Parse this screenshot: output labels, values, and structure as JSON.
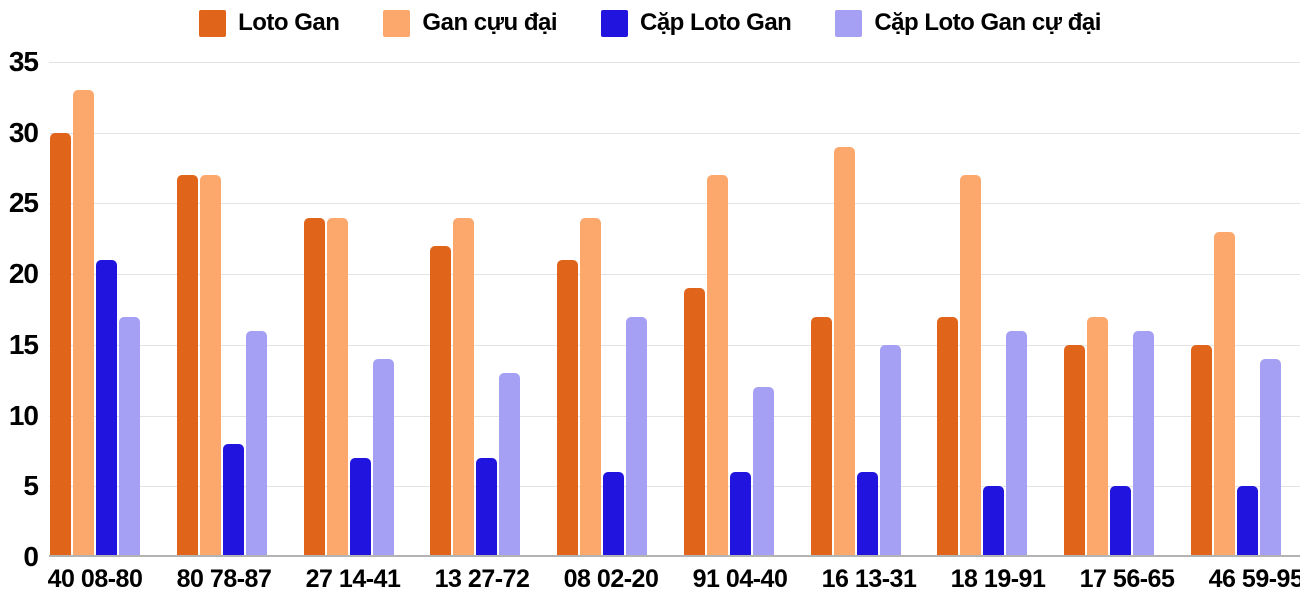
{
  "chart_data": {
    "type": "bar",
    "title": "",
    "xlabel": "",
    "ylabel": "",
    "categories": [
      "40 08-80",
      "80 78-87",
      "27 14-41",
      "13 27-72",
      "08 02-20",
      "91 04-40",
      "16 13-31",
      "18 19-91",
      "17 56-65",
      "46 59-95"
    ],
    "series": [
      {
        "name": "Loto Gan",
        "color": "#E0641A",
        "values": [
          30,
          27,
          24,
          22,
          21,
          19,
          17,
          17,
          15,
          15
        ]
      },
      {
        "name": "Gan cựu đại",
        "color": "#FCA76C",
        "values": [
          33,
          27,
          24,
          24,
          24,
          27,
          29,
          27,
          17,
          23
        ]
      },
      {
        "name": "Cặp Loto Gan",
        "color": "#2114DF",
        "values": [
          21,
          8,
          7,
          7,
          6,
          6,
          6,
          5,
          5,
          5
        ]
      },
      {
        "name": "Cặp Loto Gan cự đại",
        "color": "#A5A0F3",
        "values": [
          17,
          16,
          14,
          13,
          17,
          12,
          15,
          16,
          16,
          14
        ]
      }
    ],
    "ylim": [
      0,
      35
    ],
    "yticks": [
      0,
      5,
      10,
      15,
      20,
      25,
      30,
      35
    ],
    "grid": true,
    "legend_position": "top"
  },
  "colors": {
    "background": "#FFFFFF",
    "grid_line": "#E3E3E3",
    "baseline": "#B3B3B3",
    "text": "#000000"
  }
}
